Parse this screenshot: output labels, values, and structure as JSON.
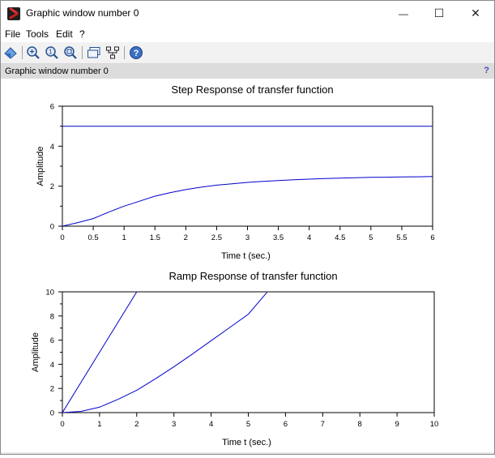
{
  "window": {
    "title": "Graphic window number 0",
    "icon": "scilab-icon",
    "controls": [
      "minimize-icon",
      "maximize-icon",
      "close-icon"
    ],
    "minimize_glyph": "—",
    "maximize_glyph": "☐",
    "close_glyph": "✕"
  },
  "menu": [
    {
      "label": "File"
    },
    {
      "label": "Tools"
    },
    {
      "label": "Edit"
    },
    {
      "label": "?"
    }
  ],
  "toolbar": {
    "items": [
      "rotate-icon",
      "zoom-icon",
      "unzoom-icon",
      "zoom-reset-icon",
      "datatip-icon",
      "data-tree-icon",
      "help-icon"
    ]
  },
  "infobar": {
    "text": "Graphic window number 0",
    "help": "?"
  },
  "chart_data": [
    {
      "type": "line",
      "title": "Step Response of transfer function",
      "xlabel": "Time t (sec.)",
      "ylabel": "Amplitude",
      "xlim": [
        0,
        6
      ],
      "ylim": [
        0,
        6
      ],
      "xticks": [
        "0",
        "0.5",
        "1",
        "1.5",
        "2",
        "2.5",
        "3",
        "3.5",
        "4",
        "4.5",
        "5",
        "5.5",
        "6"
      ],
      "yticks": [
        "0",
        "2",
        "4",
        "6"
      ],
      "color": "#0000cc",
      "series": [
        {
          "x": [
            0,
            6
          ],
          "y": [
            5,
            5
          ]
        },
        {
          "x": [
            0,
            0.25,
            0.5,
            0.75,
            1,
            1.25,
            1.5,
            1.75,
            2,
            2.25,
            2.5,
            2.75,
            3,
            3.25,
            3.5,
            3.75,
            4,
            4.25,
            4.5,
            4.75,
            5,
            5.25,
            5.5,
            5.75,
            6
          ],
          "y": [
            0,
            0.18,
            0.38,
            0.7,
            1.0,
            1.25,
            1.5,
            1.68,
            1.83,
            1.95,
            2.05,
            2.12,
            2.19,
            2.24,
            2.28,
            2.32,
            2.35,
            2.38,
            2.4,
            2.42,
            2.44,
            2.45,
            2.46,
            2.47,
            2.48
          ]
        }
      ]
    },
    {
      "type": "line",
      "title": "Ramp Response of transfer function",
      "xlabel": "Time t (sec.)",
      "ylabel": "Amplitude",
      "xlim": [
        0,
        10
      ],
      "ylim": [
        0,
        10
      ],
      "xticks": [
        "0",
        "1",
        "2",
        "3",
        "4",
        "5",
        "6",
        "7",
        "8",
        "9",
        "10"
      ],
      "yticks": [
        "0",
        "2",
        "4",
        "6",
        "8",
        "10"
      ],
      "color": "#0000cc",
      "series": [
        {
          "x": [
            0,
            2
          ],
          "y": [
            0,
            10
          ]
        },
        {
          "x": [
            0,
            0.5,
            1,
            1.5,
            2,
            2.5,
            3,
            3.5,
            4,
            4.5,
            5,
            5.5
          ],
          "y": [
            0,
            0.1,
            0.45,
            1.1,
            1.85,
            2.8,
            3.8,
            4.85,
            5.95,
            7.05,
            8.15,
            9.95
          ]
        }
      ]
    }
  ]
}
